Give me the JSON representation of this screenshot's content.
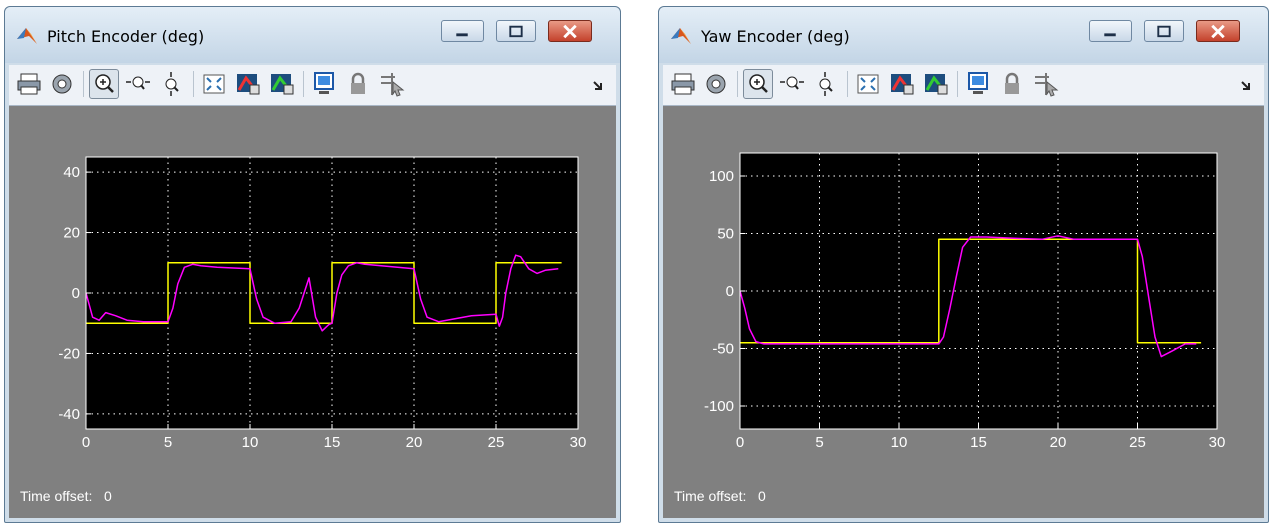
{
  "windows": [
    {
      "title": "Pitch Encoder (deg)",
      "icon": "matlab-logo-icon",
      "toolbar": [
        "print-icon",
        "parameters-gear-icon",
        "zoom-in-icon",
        "zoom-x-icon",
        "zoom-y-icon",
        "autoscale-icon",
        "save-axes-settings-icon",
        "restore-axes-settings-icon",
        "floating-scope-icon",
        "lock-axes-icon",
        "signal-selection-icon",
        "dock-arrow-icon"
      ],
      "time_offset_label": "Time offset:",
      "time_offset_value": "0",
      "chart_data": {
        "type": "line",
        "xlim": [
          0,
          30
        ],
        "ylim": [
          -45,
          45
        ],
        "xticks": [
          0,
          5,
          10,
          15,
          20,
          25,
          30
        ],
        "yticks": [
          -40,
          -20,
          0,
          20,
          40
        ],
        "grid": true,
        "background": "#000000",
        "series": [
          {
            "color": "#ffff00",
            "x": [
              0,
              5,
              5,
              10,
              10,
              15,
              15,
              20,
              20,
              25,
              25,
              29
            ],
            "y": [
              -10,
              -10,
              10,
              10,
              -10,
              -10,
              10,
              10,
              -10,
              -10,
              10,
              10
            ]
          },
          {
            "color": "#ff00ff",
            "x": [
              0,
              0.2,
              0.4,
              0.8,
              1.2,
              1.8,
              2.5,
              3.5,
              5,
              5.3,
              5.6,
              6,
              6.5,
              7,
              8,
              10,
              10.4,
              10.8,
              11.5,
              12.5,
              13,
              13.3,
              13.6,
              14,
              14.4,
              14.8,
              15,
              15.3,
              15.6,
              16,
              16.5,
              17,
              18,
              20,
              20.4,
              20.8,
              21.5,
              22.5,
              23.5,
              25,
              25.2,
              25.4,
              25.6,
              25.9,
              26.2,
              26.5,
              27,
              27.5,
              28,
              28.8
            ],
            "y": [
              0,
              -4,
              -8,
              -9,
              -6.5,
              -7.5,
              -9,
              -9.5,
              -9.5,
              -5,
              3,
              8.5,
              9.5,
              9,
              8.5,
              8,
              -2,
              -8,
              -10,
              -9.5,
              -5,
              0,
              5,
              -8,
              -12.5,
              -10.5,
              -10,
              0,
              6,
              9,
              10,
              9.5,
              9,
              8,
              -2,
              -8,
              -9.5,
              -8.5,
              -7.5,
              -7,
              -11,
              -8,
              0,
              8,
              12.5,
              12,
              8,
              6.5,
              7.5,
              8
            ]
          }
        ]
      }
    },
    {
      "title": "Yaw Encoder (deg)",
      "icon": "matlab-logo-icon",
      "toolbar": [
        "print-icon",
        "parameters-gear-icon",
        "zoom-in-icon",
        "zoom-x-icon",
        "zoom-y-icon",
        "autoscale-icon",
        "save-axes-settings-icon",
        "restore-axes-settings-icon",
        "floating-scope-icon",
        "lock-axes-icon",
        "signal-selection-icon",
        "dock-arrow-icon"
      ],
      "time_offset_label": "Time offset:",
      "time_offset_value": "0",
      "chart_data": {
        "type": "line",
        "xlim": [
          0,
          30
        ],
        "ylim": [
          -120,
          120
        ],
        "xticks": [
          0,
          5,
          10,
          15,
          20,
          25,
          30
        ],
        "yticks": [
          -100,
          -50,
          0,
          50,
          100
        ],
        "grid": true,
        "background": "#000000",
        "series": [
          {
            "color": "#ffff00",
            "x": [
              0,
              12.5,
              12.5,
              25,
              25,
              29
            ],
            "y": [
              -45,
              -45,
              45,
              45,
              -45,
              -45
            ]
          },
          {
            "color": "#ff00ff",
            "x": [
              0,
              0.3,
              0.6,
              1,
              1.5,
              3,
              5,
              12.5,
              12.8,
              13.2,
              13.6,
              14,
              14.5,
              15.5,
              17,
              19,
              20,
              21,
              25,
              25.3,
              25.7,
              26.1,
              26.5,
              27.2,
              28,
              28.7
            ],
            "y": [
              0,
              -15,
              -33,
              -44,
              -46,
              -46,
              -46,
              -46,
              -40,
              -15,
              12,
              38,
              47,
              47,
              46,
              45,
              48,
              45,
              45,
              30,
              -5,
              -40,
              -57,
              -52,
              -46,
              -46
            ]
          }
        ]
      }
    }
  ]
}
